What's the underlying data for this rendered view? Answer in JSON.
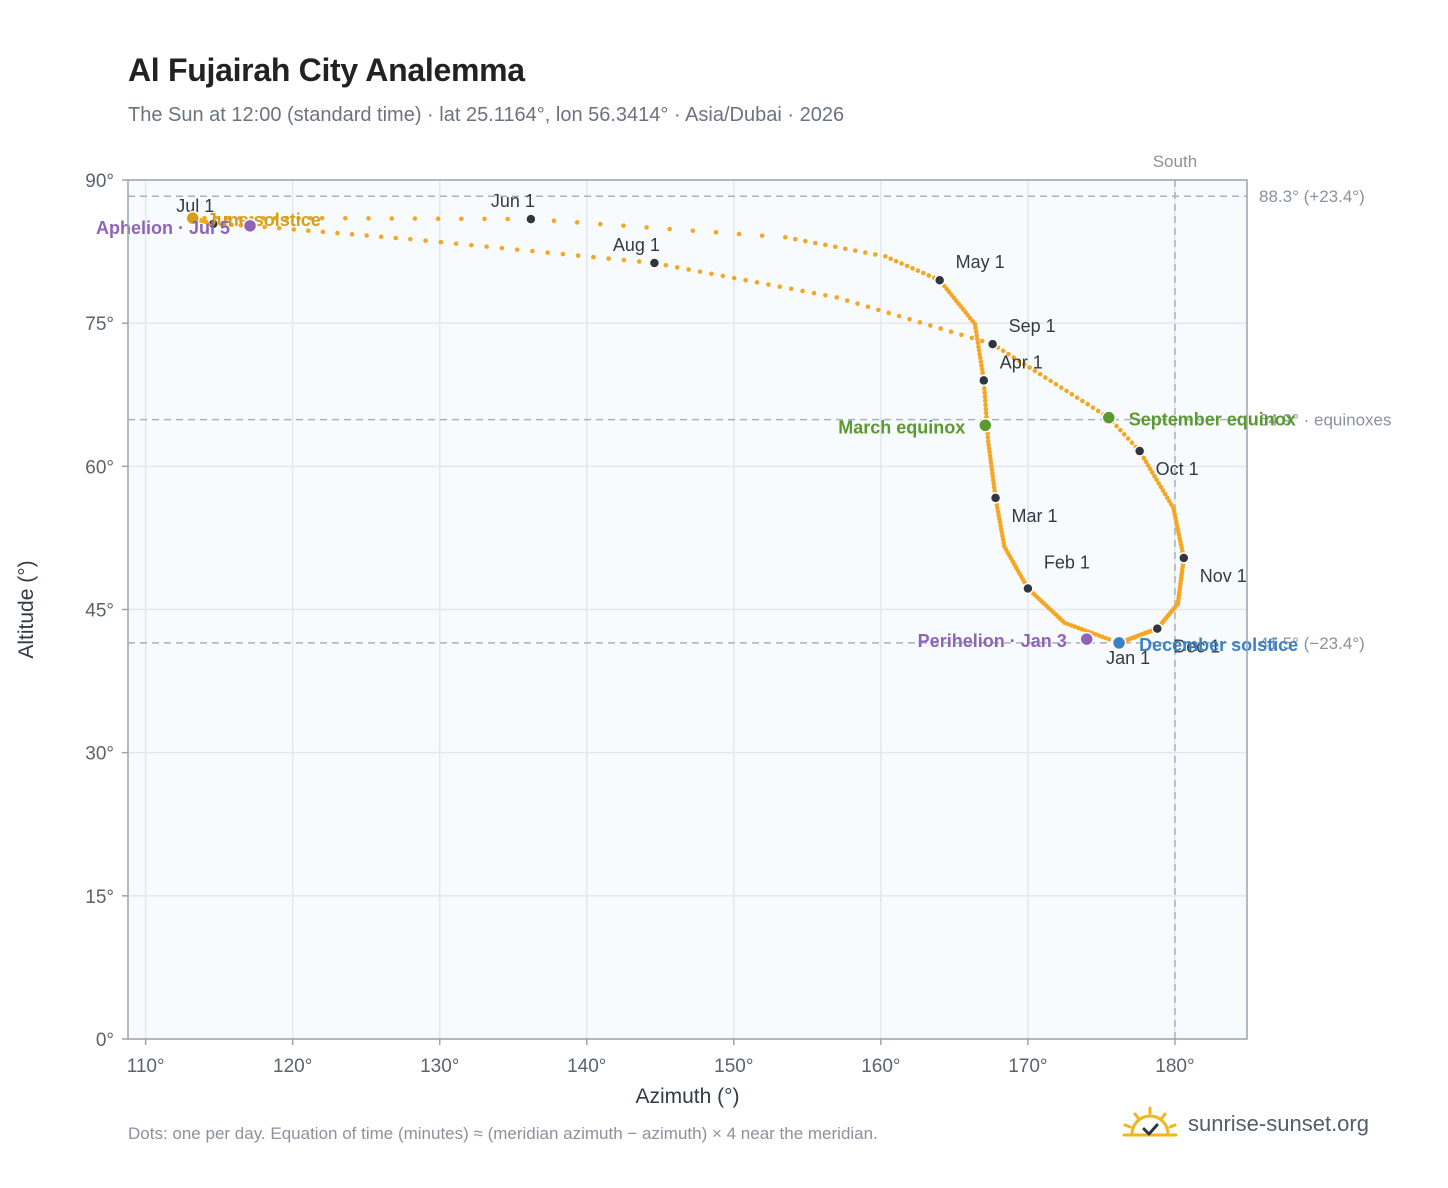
{
  "header": {
    "title": "Al Fujairah City Analemma",
    "subtitle": "The Sun at 12:00 (standard time) · lat 25.1164°, lon 56.3414° · Asia/Dubai · 2026"
  },
  "footer": {
    "note": "Dots: one per day. Equation of time (minutes) ≈ (meridian azimuth − azimuth) × 4 near the meridian.",
    "brand": "sunrise-sunset.org"
  },
  "colors": {
    "analemma": "#f5a623",
    "month_marker": "#2f3640",
    "equinox": "#5a9a2e",
    "june_solstice": "#d4a017",
    "december_solstice": "#3b82c4",
    "apsis": "#8e63b8",
    "reference_line": "#a8b2bc",
    "plot_background": "#f8fbfd"
  },
  "chart_data": {
    "type": "scatter",
    "title": "Al Fujairah City Analemma",
    "subtitle": "The Sun at 12:00 (standard time) · lat 25.1164°, lon 56.3414° · Asia/Dubai · 2026",
    "xlabel": "Azimuth (°)",
    "ylabel": "Altitude (°)",
    "xlim": [
      108.8,
      184.9
    ],
    "ylim": [
      0,
      90
    ],
    "xticks": [
      110,
      120,
      130,
      140,
      150,
      160,
      170,
      180
    ],
    "xtick_labels": [
      "110°",
      "120°",
      "130°",
      "140°",
      "150°",
      "160°",
      "170°",
      "180°"
    ],
    "yticks": [
      0,
      15,
      30,
      45,
      60,
      75,
      90
    ],
    "ytick_labels": [
      "0°",
      "15°",
      "30°",
      "45°",
      "60°",
      "75°",
      "90°"
    ],
    "grid": true,
    "south_line": {
      "azimuth": 180,
      "label": "South"
    },
    "reference_lines": [
      {
        "altitude": 88.3,
        "label": "88.3° (+23.4°)"
      },
      {
        "altitude": 64.9,
        "label": "64.9° · equinoxes"
      },
      {
        "altitude": 41.5,
        "label": "41.5° (−23.4°)"
      }
    ],
    "month_markers": [
      {
        "label": "Jan 1",
        "az": 176.0,
        "alt": 41.6
      },
      {
        "label": "Feb 1",
        "az": 170.0,
        "alt": 47.2
      },
      {
        "label": "Mar 1",
        "az": 167.8,
        "alt": 56.7
      },
      {
        "label": "Apr 1",
        "az": 167.0,
        "alt": 69.0
      },
      {
        "label": "May 1",
        "az": 164.0,
        "alt": 79.5
      },
      {
        "label": "Jun 1",
        "az": 136.2,
        "alt": 85.9
      },
      {
        "label": "Jul 1",
        "az": 114.6,
        "alt": 85.4
      },
      {
        "label": "Aug 1",
        "az": 144.6,
        "alt": 81.3
      },
      {
        "label": "Sep 1",
        "az": 167.6,
        "alt": 72.8
      },
      {
        "label": "Oct 1",
        "az": 177.6,
        "alt": 61.6
      },
      {
        "label": "Nov 1",
        "az": 180.6,
        "alt": 50.4
      },
      {
        "label": "Dec 1",
        "az": 178.8,
        "alt": 43.0
      }
    ],
    "events": [
      {
        "label": "March equinox",
        "az": 167.1,
        "alt": 64.3,
        "kind": "equinox"
      },
      {
        "label": "June solstice",
        "az": 113.2,
        "alt": 86.0,
        "kind": "june_solstice"
      },
      {
        "label": "September equinox",
        "az": 175.5,
        "alt": 65.1,
        "kind": "equinox"
      },
      {
        "label": "December solstice",
        "az": 176.2,
        "alt": 41.5,
        "kind": "december_solstice"
      },
      {
        "label": "Perihelion · Jan 3",
        "az": 174.0,
        "alt": 41.9,
        "kind": "apsis"
      },
      {
        "label": "Aphelion · Jul 5",
        "az": 117.1,
        "alt": 85.2,
        "kind": "apsis"
      }
    ],
    "path_keypoints": [
      {
        "day": 0,
        "az": 176.0,
        "alt": 41.6
      },
      {
        "day": 15,
        "az": 172.5,
        "alt": 43.6
      },
      {
        "day": 31,
        "az": 170.0,
        "alt": 47.2
      },
      {
        "day": 45,
        "az": 168.4,
        "alt": 51.6
      },
      {
        "day": 59,
        "az": 167.8,
        "alt": 56.7
      },
      {
        "day": 75,
        "az": 167.3,
        "alt": 62.6
      },
      {
        "day": 90,
        "az": 167.0,
        "alt": 69.0
      },
      {
        "day": 105,
        "az": 166.4,
        "alt": 74.9
      },
      {
        "day": 120,
        "az": 164.0,
        "alt": 79.5
      },
      {
        "day": 130,
        "az": 160.3,
        "alt": 82.0
      },
      {
        "day": 140,
        "az": 153.5,
        "alt": 84.0
      },
      {
        "day": 151,
        "az": 136.2,
        "alt": 85.9
      },
      {
        "day": 160,
        "az": 122.0,
        "alt": 86.0
      },
      {
        "day": 171,
        "az": 113.2,
        "alt": 86.0
      },
      {
        "day": 181,
        "az": 114.6,
        "alt": 85.4
      },
      {
        "day": 185,
        "az": 117.1,
        "alt": 85.2
      },
      {
        "day": 196,
        "az": 128.0,
        "alt": 83.8
      },
      {
        "day": 212,
        "az": 144.6,
        "alt": 81.3
      },
      {
        "day": 228,
        "az": 157.0,
        "alt": 77.7
      },
      {
        "day": 243,
        "az": 167.6,
        "alt": 72.8
      },
      {
        "day": 265,
        "az": 175.5,
        "alt": 65.1
      },
      {
        "day": 273,
        "az": 177.6,
        "alt": 61.6
      },
      {
        "day": 289,
        "az": 179.9,
        "alt": 55.6
      },
      {
        "day": 304,
        "az": 180.6,
        "alt": 50.4
      },
      {
        "day": 320,
        "az": 180.2,
        "alt": 45.6
      },
      {
        "day": 334,
        "az": 178.8,
        "alt": 43.0
      },
      {
        "day": 355,
        "az": 176.2,
        "alt": 41.5
      },
      {
        "day": 365,
        "az": 176.0,
        "alt": 41.6
      }
    ]
  }
}
